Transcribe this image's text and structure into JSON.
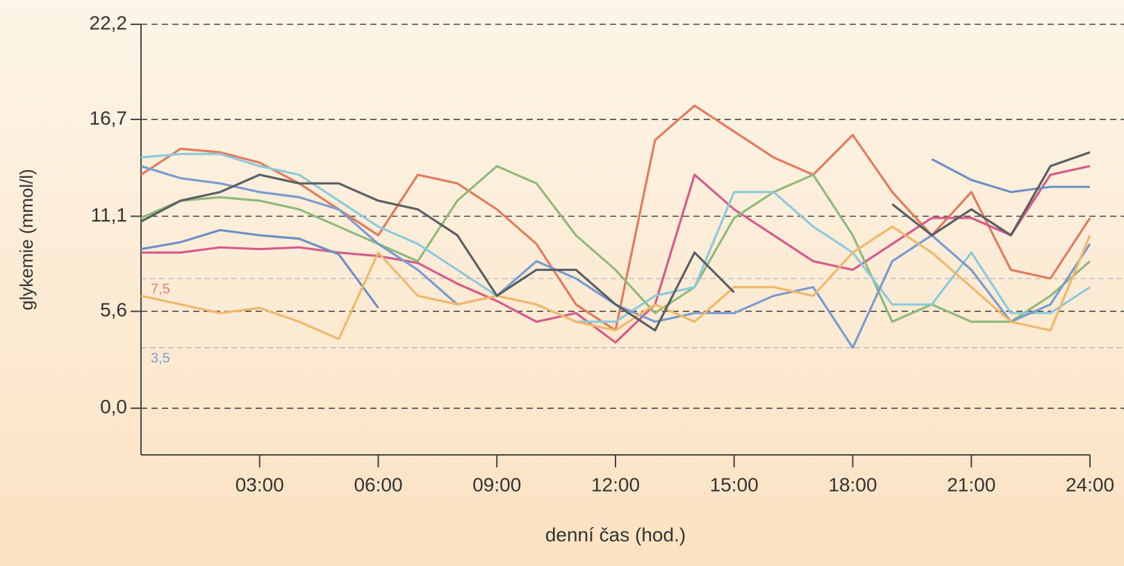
{
  "chart_data": {
    "type": "line",
    "y_label": "glykemie (mmol/l)",
    "x_label": "denní čas (hod.)",
    "xlim": [
      0,
      24
    ],
    "ylim": [
      -2.7,
      22.2
    ],
    "xticks": [
      {
        "value": 3,
        "label": "03:00"
      },
      {
        "value": 6,
        "label": "06:00"
      },
      {
        "value": 9,
        "label": "09:00"
      },
      {
        "value": 12,
        "label": "12:00"
      },
      {
        "value": 15,
        "label": "15:00"
      },
      {
        "value": 18,
        "label": "18:00"
      },
      {
        "value": 21,
        "label": "21:00"
      },
      {
        "value": 24,
        "label": "24:00"
      }
    ],
    "yticks": [
      {
        "value": 0,
        "label": "0,0"
      },
      {
        "value": 5.6,
        "label": "5,6"
      },
      {
        "value": 11.1,
        "label": "11,1"
      },
      {
        "value": 16.7,
        "label": "16,7"
      },
      {
        "value": 22.2,
        "label": "22,2"
      }
    ],
    "grid": true,
    "reference_lines": [
      {
        "value": 7.5,
        "label": "7,5",
        "color": "#e0826a"
      },
      {
        "value": 3.5,
        "label": "3,5",
        "color": "#7f9fd4"
      }
    ],
    "x": [
      0,
      1,
      2,
      3,
      4,
      5,
      6,
      7,
      8,
      9,
      10,
      11,
      12,
      13,
      14,
      15,
      16,
      17,
      18,
      19,
      20,
      21,
      22,
      23,
      24
    ],
    "series": [
      {
        "color": "#e27b5c",
        "values": [
          13.5,
          15,
          14.8,
          14.2,
          13,
          11.5,
          10,
          13.5,
          13,
          11.5,
          9.5,
          6,
          4.5,
          15.5,
          17.5,
          16,
          14.5,
          13.5,
          15.8,
          12.5,
          10,
          12.5,
          8,
          7.5,
          11
        ]
      },
      {
        "color": "#d65a8a",
        "values": [
          9,
          9,
          9.3,
          9.2,
          9.3,
          9,
          8.8,
          8.4,
          7.2,
          6.2,
          5,
          5.5,
          3.8,
          6,
          13.5,
          11.5,
          10,
          8.5,
          8,
          9.5,
          11,
          11,
          10,
          13.5,
          14
        ]
      },
      {
        "color": "#8fba7a",
        "values": [
          11,
          12,
          12.2,
          12,
          11.5,
          10.5,
          9.5,
          8.5,
          12,
          14,
          13,
          10,
          8,
          5.5,
          7,
          11,
          12.5,
          13.5,
          10,
          5,
          6,
          5,
          5,
          6.5,
          8.5
        ]
      },
      {
        "color": "#8ec9dc",
        "values": [
          14.5,
          14.7,
          14.7,
          14,
          13.5,
          12,
          10.5,
          9.5,
          8,
          6.5,
          6,
          5,
          5,
          6.5,
          7,
          12.5,
          12.5,
          10.5,
          9,
          6,
          6,
          9,
          5.5,
          5.5,
          7
        ]
      },
      {
        "color": "#6e8fc4",
        "values": [
          9.2,
          9.6,
          10.3,
          10,
          9.8,
          8.9,
          5.8,
          null,
          null,
          null,
          null,
          null,
          null,
          null,
          null,
          null,
          null,
          null,
          null,
          null,
          14.4,
          13.2,
          12.5,
          12.8,
          12.8
        ]
      },
      {
        "color": "#7a9bd0",
        "values": [
          14,
          13.3,
          13,
          12.5,
          12.2,
          11.5,
          9.5,
          8,
          6,
          6.5,
          8.5,
          7.5,
          6,
          5,
          5.5,
          5.5,
          6.5,
          7,
          3.5,
          8.5,
          10,
          8,
          5,
          6,
          9.5
        ]
      },
      {
        "color": "#f0b86a",
        "values": [
          6.5,
          6,
          5.5,
          5.8,
          5,
          4,
          9,
          6.5,
          6,
          6.5,
          6,
          5,
          4.5,
          6,
          5,
          7,
          7,
          6.5,
          9,
          10.5,
          9,
          7,
          5,
          4.5,
          10
        ]
      },
      {
        "color": "#5a5f63",
        "values": [
          10.8,
          12,
          12.5,
          13.5,
          13,
          13,
          12,
          11.5,
          10,
          6.5,
          8,
          8,
          6,
          4.5,
          9,
          6.7,
          null,
          null,
          null,
          11.8,
          10,
          11.5,
          10,
          14,
          14.8
        ]
      }
    ]
  }
}
